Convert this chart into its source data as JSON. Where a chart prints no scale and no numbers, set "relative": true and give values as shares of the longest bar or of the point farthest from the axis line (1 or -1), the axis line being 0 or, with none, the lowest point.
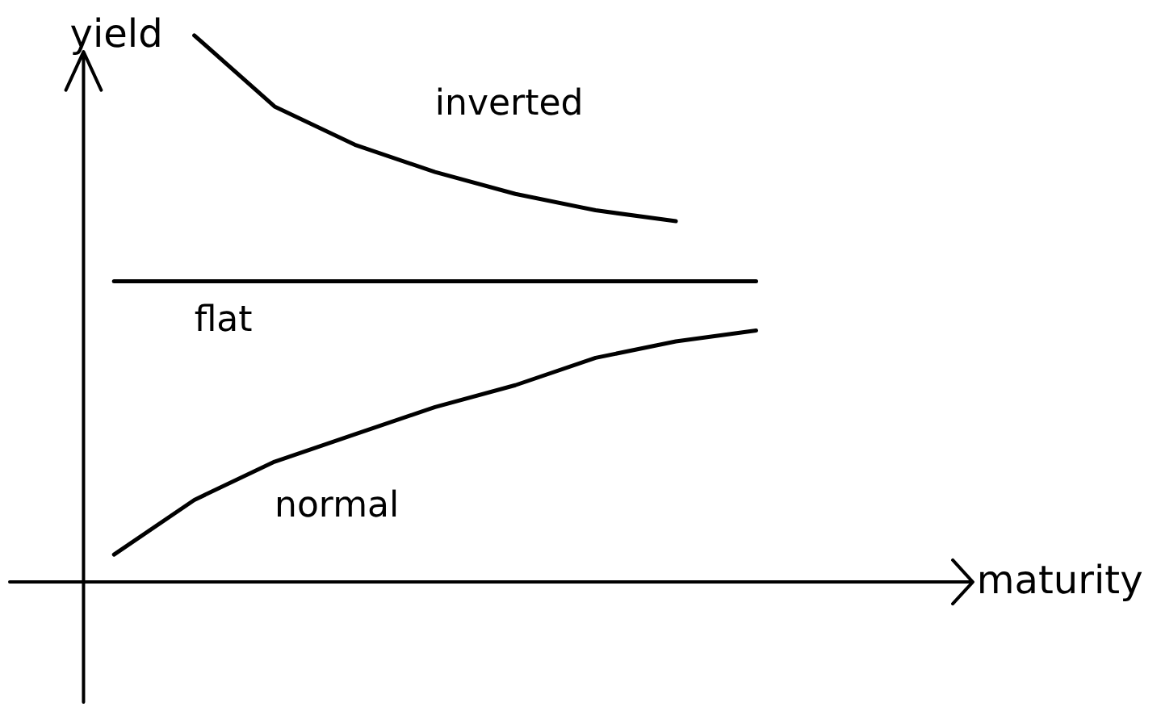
{
  "chart_data": {
    "type": "line",
    "relative": true,
    "xlabel": "maturity",
    "ylabel": "yield",
    "legend": false,
    "marker": "none",
    "line_style": "solid",
    "categories": [
      null,
      null,
      null,
      null,
      null,
      null,
      null,
      null,
      null
    ],
    "series": [
      {
        "name": "inverted",
        "color": "#000000",
        "values": [
          null,
          1.0,
          0.87,
          0.8,
          0.75,
          0.71,
          0.68,
          0.66,
          null
        ]
      },
      {
        "name": "flat",
        "color": "#000000",
        "values": [
          0.55,
          0.55,
          0.55,
          0.55,
          0.55,
          0.55,
          0.55,
          0.55,
          0.55
        ]
      },
      {
        "name": "normal",
        "color": "#000000",
        "values": [
          0.05,
          0.15,
          0.22,
          0.27,
          0.32,
          0.36,
          0.41,
          0.44,
          0.46
        ]
      }
    ]
  }
}
